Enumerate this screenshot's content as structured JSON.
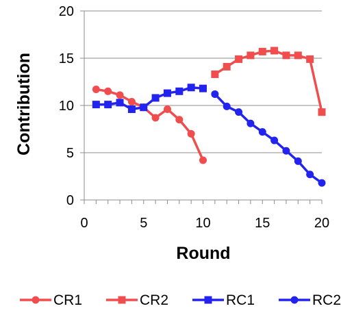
{
  "chart_data": {
    "type": "line",
    "xlabel": "Round",
    "ylabel": "Contribution",
    "xlim": [
      0,
      20
    ],
    "ylim": [
      0,
      20
    ],
    "xticks": [
      0,
      5,
      10,
      15,
      20
    ],
    "yticks": [
      0,
      5,
      10,
      15,
      20
    ],
    "grid": "horizontal",
    "legend_position": "bottom",
    "series": [
      {
        "name": "CR1",
        "color": "#f04e4e",
        "marker": "circle",
        "x": [
          1,
          2,
          3,
          4,
          5,
          6,
          7,
          8,
          9,
          10
        ],
        "y": [
          11.7,
          11.5,
          11.1,
          10.4,
          9.8,
          8.7,
          9.6,
          8.5,
          7.0,
          4.2
        ]
      },
      {
        "name": "CR2",
        "color": "#f04e4e",
        "marker": "square",
        "x": [
          11,
          12,
          13,
          14,
          15,
          16,
          17,
          18,
          19,
          20
        ],
        "y": [
          13.3,
          14.1,
          14.9,
          15.3,
          15.7,
          15.8,
          15.3,
          15.3,
          14.9,
          9.3
        ]
      },
      {
        "name": "RC1",
        "color": "#2323f0",
        "marker": "square",
        "x": [
          1,
          2,
          3,
          4,
          5,
          6,
          7,
          8,
          9,
          10
        ],
        "y": [
          10.1,
          10.1,
          10.3,
          9.6,
          9.8,
          10.8,
          11.3,
          11.5,
          11.9,
          11.8
        ]
      },
      {
        "name": "RC2",
        "color": "#2323f0",
        "marker": "circle",
        "x": [
          11,
          12,
          13,
          14,
          15,
          16,
          17,
          18,
          19,
          20
        ],
        "y": [
          11.2,
          9.9,
          9.3,
          8.1,
          7.2,
          6.3,
          5.2,
          4.1,
          2.7,
          1.8
        ]
      }
    ]
  }
}
